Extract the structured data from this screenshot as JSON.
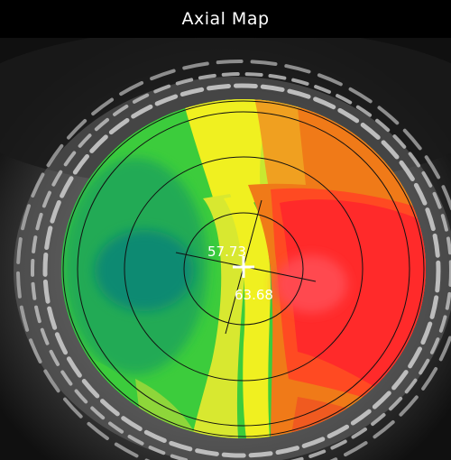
{
  "title": "Axial Map",
  "steep_k_label": "57.73",
  "flat_k_label": "63.68",
  "colors": {
    "steep": "#ff2a2a",
    "flat": "#0e8a72",
    "mid_green": "#24b24a",
    "yellow": "#f0f020",
    "orange": "#f07a18",
    "background": "#000000"
  }
}
